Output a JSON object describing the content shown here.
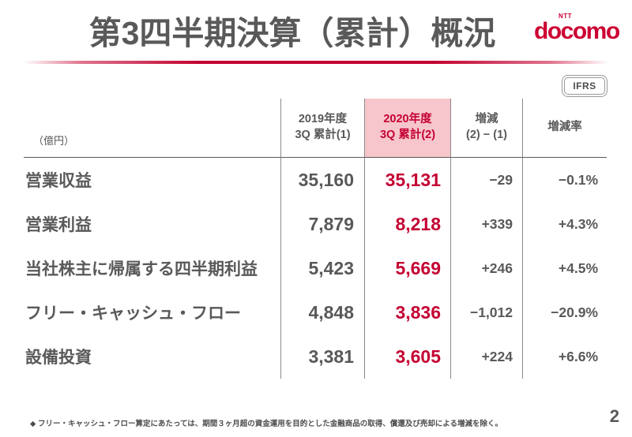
{
  "header": {
    "title": "第3四半期決算（累計）概況",
    "logo": {
      "ntt": "NTT",
      "brand": "docomo"
    }
  },
  "ifrs_badge": "IFRS",
  "table": {
    "unit_label": "（億円）",
    "columns": [
      {
        "line1": "2019年度",
        "line2": "3Q 累計(1)"
      },
      {
        "line1": "2020年度",
        "line2": "3Q 累計(2)"
      },
      {
        "line1": "増減",
        "line2": "(2) − (1)"
      },
      {
        "line1": "増減率"
      }
    ],
    "rows": [
      {
        "label": "営業収益",
        "fy2019": "35,160",
        "fy2020": "35,131",
        "change": "−29",
        "change_rate": "−0.1%"
      },
      {
        "label": "営業利益",
        "fy2019": "7,879",
        "fy2020": "8,218",
        "change": "+339",
        "change_rate": "+4.3%"
      },
      {
        "label": "当社株主に帰属する四半期利益",
        "fy2019": "5,423",
        "fy2020": "5,669",
        "change": "+246",
        "change_rate": "+4.5%"
      },
      {
        "label": "フリー・キャッシュ・フロー",
        "fy2019": "4,848",
        "fy2020": "3,836",
        "change": "−1,012",
        "change_rate": "−20.9%"
      },
      {
        "label": "設備投資",
        "fy2019": "3,381",
        "fy2020": "3,605",
        "change": "+224",
        "change_rate": "+6.6%"
      }
    ]
  },
  "footnote": "◆ フリー・キャッシュ・フロー算定にあたっては、期間３ヶ月超の資金運用を目的とした金融商品の取得、償還及び売却による増減を除く。",
  "page_number": "2",
  "colors": {
    "brand_red": "#CC0033",
    "accent_red": "#C40233",
    "highlight_pink": "#F7C6CC",
    "text_gray": "#595959"
  }
}
